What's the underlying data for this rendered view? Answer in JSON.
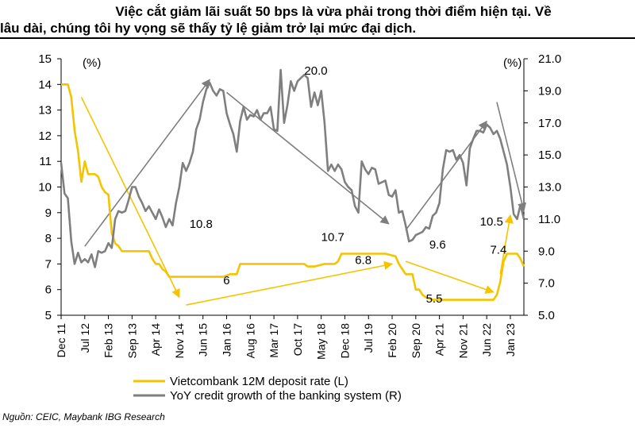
{
  "title": {
    "line1": "Việc cắt giảm lãi suất 50 bps là vừa phải trong thời điểm hiện tại. Về",
    "line2": "lâu dài, chúng tôi hy vọng sẽ thấy tỷ lệ giảm trở lại mức đại dịch."
  },
  "source": "Nguồn: CEIC, Maybank IBG Research",
  "colors": {
    "deposit": "#F5C400",
    "credit": "#7F7F7F",
    "arrow": "#7F7F7F"
  },
  "chart_data": {
    "type": "line",
    "x_tick_labels": [
      "Dec 11",
      "Jul 12",
      "Feb 13",
      "Sep 13",
      "Apr 14",
      "Nov 14",
      "Jun 15",
      "Jan 16",
      "Aug 16",
      "Mar 17",
      "Oct 17",
      "May 18",
      "Dec 18",
      "Jul 19",
      "Feb 20",
      "Sep 20",
      "Apr 21",
      "Nov 21",
      "Jun 22",
      "Jan 23"
    ],
    "x_range": [
      "Dec 11",
      "May 23"
    ],
    "y_left": {
      "unit": "(%)",
      "min": 5,
      "max": 15,
      "ticks": [
        "5",
        "6",
        "7",
        "8",
        "9",
        "10",
        "11",
        "12",
        "13",
        "14",
        "15"
      ]
    },
    "y_right": {
      "unit": "(%)",
      "min": 5,
      "max": 21,
      "ticks": [
        "5.0",
        "7.0",
        "9.0",
        "11.0",
        "13.0",
        "15.0",
        "17.0",
        "19.0",
        "21.0"
      ]
    },
    "grid": false,
    "legend_position": "bottom",
    "series": [
      {
        "name": "Vietcombank 12M deposit rate (L)",
        "axis": "left",
        "points": [
          [
            "2011-12",
            14.0
          ],
          [
            "2012-02",
            14.0
          ],
          [
            "2012-03",
            13.5
          ],
          [
            "2012-04",
            12.2
          ],
          [
            "2012-05",
            11.4
          ],
          [
            "2012-06",
            10.2
          ],
          [
            "2012-07",
            11.0
          ],
          [
            "2012-08",
            10.5
          ],
          [
            "2012-10",
            10.5
          ],
          [
            "2012-11",
            10.4
          ],
          [
            "2012-12",
            10.0
          ],
          [
            "2013-01",
            9.8
          ],
          [
            "2013-02",
            9.7
          ],
          [
            "2013-03",
            8.2
          ],
          [
            "2013-04",
            7.8
          ],
          [
            "2013-05",
            7.7
          ],
          [
            "2013-06",
            7.5
          ],
          [
            "2013-12",
            7.5
          ],
          [
            "2014-02",
            7.5
          ],
          [
            "2014-03",
            7.2
          ],
          [
            "2014-04",
            7.0
          ],
          [
            "2014-05",
            7.0
          ],
          [
            "2014-06",
            6.8
          ],
          [
            "2014-07",
            6.7
          ],
          [
            "2014-08",
            6.5
          ],
          [
            "2014-10",
            6.5
          ],
          [
            "2014-12",
            6.5
          ],
          [
            "2015-06",
            6.5
          ],
          [
            "2015-12",
            6.5
          ],
          [
            "2016-02",
            6.6
          ],
          [
            "2016-04",
            6.6
          ],
          [
            "2016-05",
            7.0
          ],
          [
            "2016-07",
            7.0
          ],
          [
            "2017-12",
            7.0
          ],
          [
            "2018-01",
            6.9
          ],
          [
            "2018-03",
            6.9
          ],
          [
            "2018-06",
            7.0
          ],
          [
            "2018-09",
            7.0
          ],
          [
            "2018-10",
            7.1
          ],
          [
            "2018-11",
            7.4
          ],
          [
            "2019-03",
            7.4
          ],
          [
            "2019-06",
            7.4
          ],
          [
            "2019-09",
            7.4
          ],
          [
            "2019-12",
            7.4
          ],
          [
            "2020-03",
            7.3
          ],
          [
            "2020-04",
            7.0
          ],
          [
            "2020-05",
            6.8
          ],
          [
            "2020-06",
            6.6
          ],
          [
            "2020-08",
            6.6
          ],
          [
            "2020-09",
            6.0
          ],
          [
            "2020-10",
            6.0
          ],
          [
            "2020-11",
            5.8
          ],
          [
            "2020-12",
            5.7
          ],
          [
            "2021-02",
            5.6
          ],
          [
            "2021-06",
            5.6
          ],
          [
            "2021-12",
            5.6
          ],
          [
            "2022-03",
            5.6
          ],
          [
            "2022-06",
            5.6
          ],
          [
            "2022-08",
            5.6
          ],
          [
            "2022-09",
            5.8
          ],
          [
            "2022-10",
            6.3
          ],
          [
            "2022-11",
            7.1
          ],
          [
            "2022-12",
            7.4
          ],
          [
            "2023-01",
            7.4
          ],
          [
            "2023-02",
            7.4
          ],
          [
            "2023-03",
            7.4
          ],
          [
            "2023-04",
            7.2
          ],
          [
            "2023-05",
            6.9
          ]
        ]
      },
      {
        "name": "YoY credit growth of the banking system (R)",
        "axis": "right",
        "points": [
          [
            "2011-12",
            14.5
          ],
          [
            "2012-01",
            12.6
          ],
          [
            "2012-02",
            12.3
          ],
          [
            "2012-03",
            9.6
          ],
          [
            "2012-04",
            8.2
          ],
          [
            "2012-05",
            8.9
          ],
          [
            "2012-06",
            8.3
          ],
          [
            "2012-07",
            8.5
          ],
          [
            "2012-08",
            8.3
          ],
          [
            "2012-09",
            8.8
          ],
          [
            "2012-10",
            8.0
          ],
          [
            "2012-11",
            9.0
          ],
          [
            "2012-12",
            8.9
          ],
          [
            "2013-01",
            9.0
          ],
          [
            "2013-02",
            9.5
          ],
          [
            "2013-03",
            9.2
          ],
          [
            "2013-04",
            11.0
          ],
          [
            "2013-05",
            11.5
          ],
          [
            "2013-06",
            11.4
          ],
          [
            "2013-07",
            11.5
          ],
          [
            "2013-08",
            12.2
          ],
          [
            "2013-09",
            13.0
          ],
          [
            "2013-10",
            13.0
          ],
          [
            "2013-11",
            12.4
          ],
          [
            "2013-12",
            12.0
          ],
          [
            "2014-01",
            11.5
          ],
          [
            "2014-02",
            11.8
          ],
          [
            "2014-03",
            11.4
          ],
          [
            "2014-04",
            11.0
          ],
          [
            "2014-05",
            11.6
          ],
          [
            "2014-06",
            11.1
          ],
          [
            "2014-07",
            10.5
          ],
          [
            "2014-08",
            11.0
          ],
          [
            "2014-09",
            10.6
          ],
          [
            "2014-10",
            12.0
          ],
          [
            "2014-11",
            13.0
          ],
          [
            "2014-12",
            14.5
          ],
          [
            "2015-01",
            14.0
          ],
          [
            "2015-02",
            14.5
          ],
          [
            "2015-03",
            15.2
          ],
          [
            "2015-04",
            16.6
          ],
          [
            "2015-05",
            17.2
          ],
          [
            "2015-06",
            18.3
          ],
          [
            "2015-07",
            19.1
          ],
          [
            "2015-08",
            19.5
          ],
          [
            "2015-09",
            19.0
          ],
          [
            "2015-10",
            18.7
          ],
          [
            "2015-11",
            19.1
          ],
          [
            "2015-12",
            19.0
          ],
          [
            "2016-01",
            17.6
          ],
          [
            "2016-02",
            16.9
          ],
          [
            "2016-03",
            16.3
          ],
          [
            "2016-04",
            15.2
          ],
          [
            "2016-05",
            17.1
          ],
          [
            "2016-06",
            18.0
          ],
          [
            "2016-07",
            17.2
          ],
          [
            "2016-08",
            17.5
          ],
          [
            "2016-09",
            17.4
          ],
          [
            "2016-10",
            17.8
          ],
          [
            "2016-11",
            17.2
          ],
          [
            "2016-12",
            17.6
          ],
          [
            "2017-01",
            17.6
          ],
          [
            "2017-02",
            18.0
          ],
          [
            "2017-03",
            16.6
          ],
          [
            "2017-04",
            16.5
          ],
          [
            "2017-05",
            20.3
          ],
          [
            "2017-06",
            17.0
          ],
          [
            "2017-07",
            18.1
          ],
          [
            "2017-08",
            19.6
          ],
          [
            "2017-09",
            19.0
          ],
          [
            "2017-10",
            19.6
          ],
          [
            "2017-11",
            19.8
          ],
          [
            "2017-12",
            20.0
          ],
          [
            "2018-01",
            19.8
          ],
          [
            "2018-02",
            18.0
          ],
          [
            "2018-03",
            18.9
          ],
          [
            "2018-04",
            18.1
          ],
          [
            "2018-05",
            19.0
          ],
          [
            "2018-06",
            17.0
          ],
          [
            "2018-07",
            14.0
          ],
          [
            "2018-08",
            14.4
          ],
          [
            "2018-09",
            14.0
          ],
          [
            "2018-10",
            14.4
          ],
          [
            "2018-11",
            14.1
          ],
          [
            "2018-12",
            13.3
          ],
          [
            "2019-01",
            13.0
          ],
          [
            "2019-02",
            12.8
          ],
          [
            "2019-03",
            11.8
          ],
          [
            "2019-04",
            11.4
          ],
          [
            "2019-05",
            14.6
          ],
          [
            "2019-06",
            14.1
          ],
          [
            "2019-07",
            13.8
          ],
          [
            "2019-08",
            14.2
          ],
          [
            "2019-09",
            14.1
          ],
          [
            "2019-10",
            13.2
          ],
          [
            "2019-11",
            13.3
          ],
          [
            "2019-12",
            13.4
          ],
          [
            "2020-01",
            12.5
          ],
          [
            "2020-02",
            12.4
          ],
          [
            "2020-03",
            12.8
          ],
          [
            "2020-04",
            11.4
          ],
          [
            "2020-05",
            11.5
          ],
          [
            "2020-06",
            10.6
          ],
          [
            "2020-07",
            9.6
          ],
          [
            "2020-08",
            9.7
          ],
          [
            "2020-09",
            10.0
          ],
          [
            "2020-10",
            10.1
          ],
          [
            "2020-11",
            10.2
          ],
          [
            "2020-12",
            10.5
          ],
          [
            "2021-01",
            10.4
          ],
          [
            "2021-02",
            11.2
          ],
          [
            "2021-03",
            11.4
          ],
          [
            "2021-04",
            12.0
          ],
          [
            "2021-05",
            14.1
          ],
          [
            "2021-06",
            15.3
          ],
          [
            "2021-07",
            15.2
          ],
          [
            "2021-08",
            15.3
          ],
          [
            "2021-09",
            14.7
          ],
          [
            "2021-10",
            15.0
          ],
          [
            "2021-11",
            14.5
          ],
          [
            "2021-12",
            13.1
          ],
          [
            "2022-01",
            15.4
          ],
          [
            "2022-02",
            16.0
          ],
          [
            "2022-03",
            16.5
          ],
          [
            "2022-04",
            16.5
          ],
          [
            "2022-05",
            16.4
          ],
          [
            "2022-06",
            16.9
          ],
          [
            "2022-07",
            16.7
          ],
          [
            "2022-08",
            16.3
          ],
          [
            "2022-09",
            16.5
          ],
          [
            "2022-10",
            16.0
          ],
          [
            "2022-11",
            15.2
          ],
          [
            "2022-12",
            14.4
          ],
          [
            "2023-01",
            13.0
          ],
          [
            "2023-02",
            11.3
          ],
          [
            "2023-03",
            11.0
          ],
          [
            "2023-04",
            11.9
          ],
          [
            "2023-05",
            11.0
          ]
        ]
      }
    ],
    "annotations": [
      {
        "text": "20.0",
        "x": "2017-12",
        "y": 20.0,
        "axis": "right"
      },
      {
        "text": "10.8",
        "x": "2015-02",
        "y": 8.4,
        "axis": "left"
      },
      {
        "text": "10.7",
        "x": "2018-05",
        "y": 7.9,
        "axis": "left"
      },
      {
        "text": "9.6",
        "x": "2021-01",
        "y": 7.6,
        "axis": "left"
      },
      {
        "text": "10.5",
        "x": "2022-04",
        "y": 8.5,
        "axis": "left"
      },
      {
        "text": "6",
        "x": "2015-12",
        "y": 6.2,
        "axis": "left"
      },
      {
        "text": "6.8",
        "x": "2019-03",
        "y": 7.0,
        "axis": "left"
      },
      {
        "text": "5.5",
        "x": "2020-12",
        "y": 5.5,
        "axis": "left"
      },
      {
        "text": "7.4",
        "x": "2022-07",
        "y": 7.4,
        "axis": "left"
      }
    ],
    "trend_arrows": [
      {
        "series": "deposit",
        "from": [
          "2012-06",
          13.5
        ],
        "to": [
          "2014-11",
          5.7
        ],
        "axis": "left"
      },
      {
        "series": "deposit",
        "from": [
          "2015-01",
          5.4
        ],
        "to": [
          "2020-02",
          7.0
        ],
        "axis": "left"
      },
      {
        "series": "deposit",
        "from": [
          "2020-06",
          7.1
        ],
        "to": [
          "2022-08",
          5.9
        ],
        "axis": "left"
      },
      {
        "series": "deposit",
        "from": [
          "2022-10",
          6.6
        ],
        "to": [
          "2023-01",
          8.9
        ],
        "axis": "left"
      },
      {
        "series": "credit",
        "from": [
          "2012-07",
          9.3
        ],
        "to": [
          "2015-08",
          19.7
        ],
        "axis": "right"
      },
      {
        "series": "credit",
        "from": [
          "2016-01",
          18.9
        ],
        "to": [
          "2020-01",
          10.7
        ],
        "axis": "right"
      },
      {
        "series": "credit",
        "from": [
          "2020-06",
          10.3
        ],
        "to": [
          "2022-06",
          17.1
        ],
        "axis": "right"
      },
      {
        "series": "credit",
        "from": [
          "2022-09",
          18.3
        ],
        "to": [
          "2023-05",
          11.5
        ],
        "axis": "right"
      }
    ]
  }
}
